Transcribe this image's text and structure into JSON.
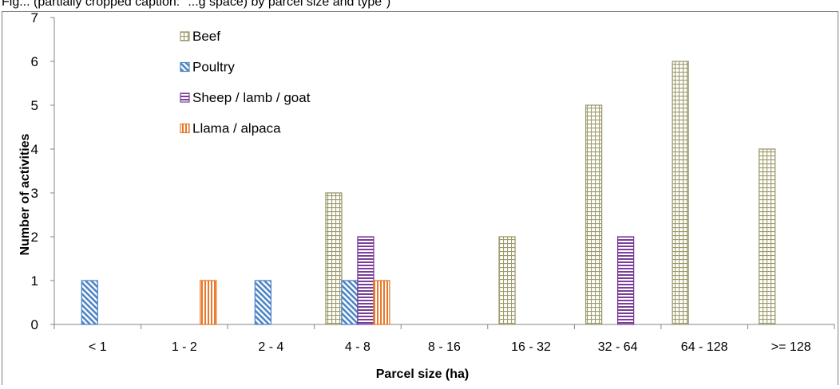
{
  "figure": {
    "title": "Fig... (partially cropped caption: \"...g space) by parcel size and type\")"
  },
  "chart_data": {
    "type": "bar",
    "categories": [
      "< 1",
      "1 - 2",
      "2 - 4",
      "4 - 8",
      "8 - 16",
      "16 - 32",
      "32 - 64",
      "64 - 128",
      ">= 128"
    ],
    "series": [
      {
        "name": "Beef",
        "values": [
          0,
          0,
          0,
          3,
          0,
          2,
          5,
          6,
          4
        ],
        "color": "#9c9a6a",
        "pattern": "grid"
      },
      {
        "name": "Poultry",
        "values": [
          1,
          0,
          1,
          1,
          0,
          0,
          0,
          0,
          0
        ],
        "color": "#4f86c6",
        "pattern": "diagonal"
      },
      {
        "name": "Sheep / lamb / goat",
        "values": [
          0,
          0,
          0,
          2,
          0,
          0,
          2,
          0,
          0
        ],
        "color": "#7a3d9a",
        "pattern": "horizontal"
      },
      {
        "name": "Llama / alpaca",
        "values": [
          0,
          1,
          0,
          1,
          0,
          0,
          0,
          0,
          0
        ],
        "color": "#e8792a",
        "pattern": "vertical"
      }
    ],
    "xlabel": "Parcel size (ha)",
    "ylabel": "Number of activities",
    "ylim": [
      0,
      7
    ],
    "yticks": [
      0,
      1,
      2,
      3,
      4,
      5,
      6,
      7
    ],
    "grid": false,
    "legend_position": "top-left"
  }
}
